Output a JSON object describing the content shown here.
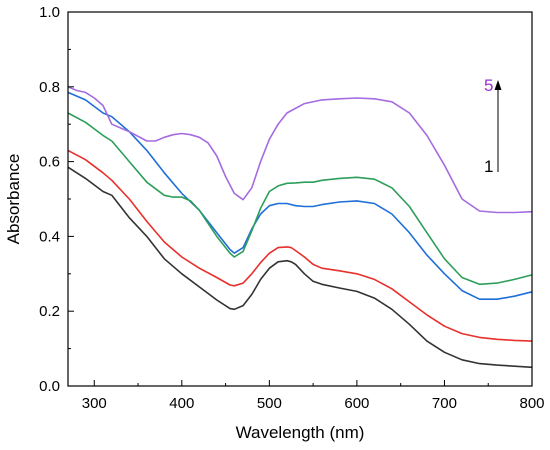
{
  "chart_data": {
    "type": "line",
    "title": "",
    "xlabel": "Wavelength (nm)",
    "ylabel": "Absorbance",
    "xlim": [
      270,
      800
    ],
    "ylim": [
      0.0,
      1.0
    ],
    "xticks": [
      300,
      400,
      500,
      600,
      700,
      800
    ],
    "yticks": [
      0.0,
      0.2,
      0.4,
      0.6,
      0.8,
      1.0
    ],
    "x_tick_labels": [
      "300",
      "400",
      "500",
      "600",
      "700",
      "800"
    ],
    "y_tick_labels": [
      "0.0",
      "0.2",
      "0.4",
      "0.6",
      "0.8",
      "1.0"
    ],
    "grid": false,
    "legend": "none",
    "annotations": [
      {
        "text": "1",
        "color": "#000000"
      },
      {
        "text": "5",
        "color": "#9932CC"
      }
    ],
    "series": [
      {
        "color": "#333333",
        "x": [
          270,
          290,
          310,
          320,
          340,
          360,
          380,
          400,
          420,
          440,
          455,
          460,
          470,
          480,
          490,
          500,
          510,
          520,
          525,
          530,
          540,
          550,
          560,
          580,
          600,
          620,
          640,
          660,
          680,
          700,
          720,
          740,
          760,
          780,
          800
        ],
        "y": [
          0.585,
          0.555,
          0.52,
          0.51,
          0.45,
          0.4,
          0.34,
          0.3,
          0.265,
          0.23,
          0.207,
          0.205,
          0.215,
          0.245,
          0.285,
          0.315,
          0.332,
          0.335,
          0.332,
          0.325,
          0.3,
          0.28,
          0.272,
          0.262,
          0.253,
          0.235,
          0.205,
          0.165,
          0.12,
          0.09,
          0.07,
          0.06,
          0.056,
          0.053,
          0.05
        ]
      },
      {
        "color": "#E8302C",
        "x": [
          270,
          290,
          310,
          320,
          340,
          360,
          380,
          400,
          420,
          440,
          455,
          460,
          470,
          480,
          490,
          500,
          510,
          520,
          525,
          530,
          540,
          550,
          560,
          580,
          600,
          620,
          640,
          660,
          680,
          700,
          720,
          740,
          760,
          780,
          800
        ],
        "y": [
          0.63,
          0.605,
          0.57,
          0.55,
          0.5,
          0.44,
          0.385,
          0.345,
          0.315,
          0.29,
          0.27,
          0.268,
          0.275,
          0.3,
          0.33,
          0.355,
          0.37,
          0.372,
          0.37,
          0.362,
          0.345,
          0.325,
          0.315,
          0.308,
          0.3,
          0.285,
          0.26,
          0.225,
          0.19,
          0.16,
          0.14,
          0.13,
          0.125,
          0.122,
          0.12
        ]
      },
      {
        "color": "#1F6FD8",
        "x": [
          270,
          290,
          310,
          320,
          340,
          360,
          380,
          400,
          420,
          440,
          455,
          460,
          470,
          480,
          490,
          500,
          510,
          520,
          530,
          540,
          550,
          560,
          580,
          600,
          620,
          640,
          660,
          680,
          700,
          720,
          740,
          760,
          780,
          800
        ],
        "y": [
          0.785,
          0.765,
          0.73,
          0.72,
          0.68,
          0.63,
          0.57,
          0.515,
          0.47,
          0.41,
          0.365,
          0.355,
          0.37,
          0.42,
          0.46,
          0.482,
          0.488,
          0.488,
          0.482,
          0.48,
          0.48,
          0.485,
          0.492,
          0.495,
          0.488,
          0.46,
          0.41,
          0.35,
          0.3,
          0.255,
          0.232,
          0.232,
          0.24,
          0.252
        ]
      },
      {
        "color": "#2E9E5B",
        "x": [
          270,
          290,
          310,
          320,
          340,
          360,
          380,
          390,
          400,
          410,
          420,
          440,
          455,
          460,
          470,
          480,
          490,
          500,
          510,
          520,
          530,
          540,
          550,
          560,
          580,
          600,
          620,
          640,
          660,
          680,
          700,
          720,
          740,
          760,
          780,
          800
        ],
        "y": [
          0.73,
          0.705,
          0.67,
          0.655,
          0.6,
          0.545,
          0.51,
          0.505,
          0.505,
          0.495,
          0.47,
          0.4,
          0.355,
          0.345,
          0.36,
          0.415,
          0.475,
          0.52,
          0.535,
          0.542,
          0.543,
          0.545,
          0.545,
          0.55,
          0.555,
          0.558,
          0.553,
          0.53,
          0.48,
          0.41,
          0.34,
          0.29,
          0.272,
          0.275,
          0.285,
          0.297
        ]
      },
      {
        "color": "#A56BE0",
        "x": [
          270,
          280,
          290,
          300,
          310,
          320,
          340,
          360,
          370,
          380,
          390,
          400,
          410,
          420,
          430,
          440,
          450,
          460,
          470,
          480,
          490,
          500,
          510,
          520,
          540,
          560,
          580,
          600,
          620,
          640,
          660,
          680,
          700,
          720,
          740,
          760,
          780,
          800
        ],
        "y": [
          0.8,
          0.79,
          0.785,
          0.77,
          0.75,
          0.7,
          0.68,
          0.655,
          0.655,
          0.665,
          0.672,
          0.675,
          0.672,
          0.665,
          0.65,
          0.615,
          0.56,
          0.515,
          0.498,
          0.53,
          0.6,
          0.66,
          0.7,
          0.73,
          0.755,
          0.765,
          0.768,
          0.77,
          0.768,
          0.76,
          0.73,
          0.67,
          0.59,
          0.5,
          0.468,
          0.464,
          0.464,
          0.466
        ]
      }
    ]
  }
}
